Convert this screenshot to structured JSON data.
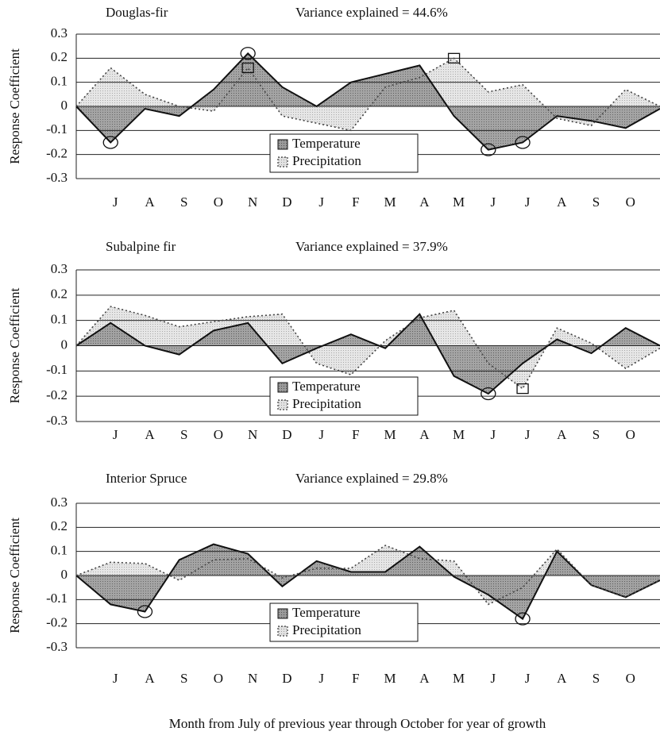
{
  "chart_data": [
    {
      "type": "area",
      "title": "Douglas-fir",
      "subtitle": "Variance explained = 44.6%",
      "ylabel": "Response Coefficient",
      "categories": [
        null,
        "J",
        "A",
        "S",
        "O",
        "N",
        "D",
        "J",
        "F",
        "M",
        "A",
        "M",
        "J",
        "J",
        "A",
        "S",
        "O",
        null
      ],
      "ylim": [
        -0.3,
        0.3
      ],
      "yticks": [
        0.3,
        0.2,
        0.1,
        0,
        -0.1,
        -0.2,
        -0.3
      ],
      "grid": true,
      "legend": "bottom-center",
      "series": [
        {
          "name": "Temperature",
          "color": "#8c8c8c",
          "marker": "circle",
          "markers": [
            1,
            5,
            12,
            13
          ],
          "values": [
            0,
            -0.15,
            -0.01,
            -0.04,
            0.07,
            0.22,
            0.08,
            0,
            0.1,
            0.135,
            0.17,
            -0.04,
            -0.18,
            -0.15,
            -0.04,
            -0.06,
            -0.09,
            -0.01
          ]
        },
        {
          "name": "Precipitation",
          "color": "#d2d2d2",
          "marker": "square",
          "markers": [
            5,
            11
          ],
          "values": [
            0,
            0.16,
            0.05,
            0,
            -0.02,
            0.16,
            -0.04,
            -0.07,
            -0.1,
            0.08,
            0.12,
            0.2,
            0.06,
            0.09,
            -0.05,
            -0.08,
            0.07,
            0
          ]
        }
      ]
    },
    {
      "type": "area",
      "title": "Subalpine fir",
      "subtitle": "Variance explained = 37.9%",
      "ylabel": "Response Coefficient",
      "categories": [
        null,
        "J",
        "A",
        "S",
        "O",
        "N",
        "D",
        "J",
        "F",
        "M",
        "A",
        "M",
        "J",
        "J",
        "A",
        "S",
        "O",
        null
      ],
      "ylim": [
        -0.3,
        0.3
      ],
      "yticks": [
        0.3,
        0.2,
        0.1,
        0,
        -0.1,
        -0.2,
        -0.3
      ],
      "grid": true,
      "legend": "bottom-center",
      "series": [
        {
          "name": "Temperature",
          "color": "#8c8c8c",
          "marker": "circle",
          "markers": [
            12
          ],
          "values": [
            0,
            0.09,
            0,
            -0.035,
            0.06,
            0.09,
            -0.07,
            -0.01,
            0.045,
            -0.01,
            0.125,
            -0.12,
            -0.19,
            -0.07,
            0.025,
            -0.03,
            0.07,
            0
          ]
        },
        {
          "name": "Precipitation",
          "color": "#d2d2d2",
          "marker": "square",
          "markers": [
            13
          ],
          "values": [
            0,
            0.155,
            0.12,
            0.075,
            0.095,
            0.115,
            0.125,
            -0.07,
            -0.115,
            0.02,
            0.11,
            0.14,
            -0.07,
            -0.17,
            0.07,
            0.01,
            -0.09,
            -0.01
          ]
        }
      ]
    },
    {
      "type": "area",
      "title": "Interior Spruce",
      "subtitle": "Variance explained = 29.8%",
      "ylabel": "Response Coefficient",
      "xlabel": "Month from July of previous year through October for year of growth",
      "categories": [
        null,
        "J",
        "A",
        "S",
        "O",
        "N",
        "D",
        "J",
        "F",
        "M",
        "A",
        "M",
        "J",
        "J",
        "A",
        "S",
        "O",
        null
      ],
      "ylim": [
        -0.3,
        0.3
      ],
      "yticks": [
        0.3,
        0.2,
        0.1,
        0,
        -0.1,
        -0.2,
        -0.3
      ],
      "grid": true,
      "legend": "bottom-center",
      "series": [
        {
          "name": "Temperature",
          "color": "#8c8c8c",
          "marker": "circle",
          "markers": [
            2,
            13
          ],
          "values": [
            0,
            -0.12,
            -0.15,
            0.065,
            0.13,
            0.09,
            -0.045,
            0.06,
            0.015,
            0.015,
            0.12,
            -0.005,
            -0.08,
            -0.18,
            0.1,
            -0.04,
            -0.09,
            -0.02
          ]
        },
        {
          "name": "Precipitation",
          "color": "#d2d2d2",
          "marker": "square",
          "markers": [],
          "values": [
            0,
            0.055,
            0.05,
            -0.02,
            0.065,
            0.07,
            -0.01,
            0.03,
            0.03,
            0.125,
            0.07,
            0.06,
            -0.12,
            -0.05,
            0.11,
            -0.04,
            -0.09,
            -0.02
          ]
        }
      ]
    }
  ]
}
